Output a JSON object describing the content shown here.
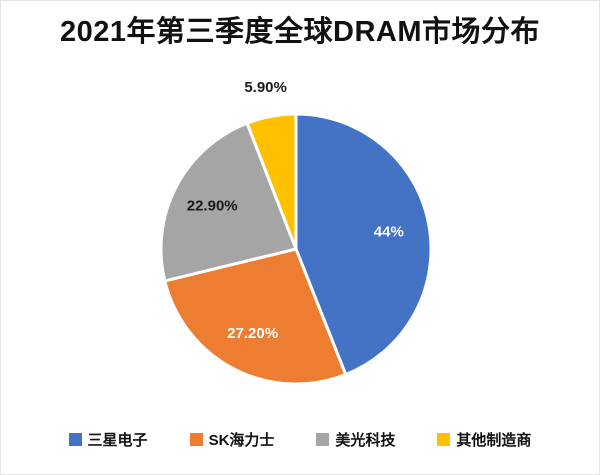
{
  "chart_data": {
    "type": "pie",
    "title": "2021年第三季度全球DRAM市场分布",
    "labels": [
      "三星电子",
      "SK海力士",
      "美光科技",
      "其他制造商"
    ],
    "values": [
      44,
      27.2,
      22.9,
      5.9
    ],
    "display_labels": [
      "44%",
      "27.20%",
      "22.90%",
      "5.90%"
    ],
    "colors": [
      "#4472C4",
      "#ED7D31",
      "#A5A5A5",
      "#FFC000"
    ],
    "label_colors": [
      "#FFFFFF",
      "#FFFFFF",
      "#1A1A1A",
      "#1A1A1A"
    ],
    "label_placements": [
      "inside",
      "inside",
      "inside",
      "outside"
    ],
    "start_angle_deg": 0,
    "direction": "clockwise",
    "legend_position": "bottom",
    "background_color": "#FFFFFF",
    "slice_border_color": "#FFFFFF"
  }
}
